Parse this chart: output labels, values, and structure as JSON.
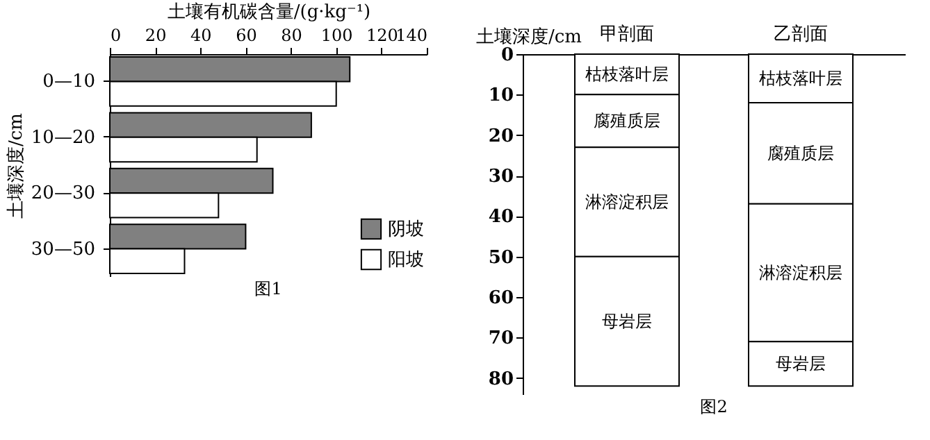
{
  "chart_data": [
    {
      "type": "bar",
      "orientation": "horizontal",
      "xlabel": "土壤有机碳含量/(g·kg⁻¹)",
      "ylabel": "土壤深度/cm",
      "categories": [
        "0—10",
        "10—20",
        "20—30",
        "30—50"
      ],
      "series": [
        {
          "name": "阴坡",
          "color": "#808080",
          "values": [
            106,
            89,
            72,
            60
          ]
        },
        {
          "name": "阳坡",
          "color": "#ffffff",
          "values": [
            100,
            65,
            48,
            33
          ]
        }
      ],
      "xlim": [
        0,
        140
      ],
      "xticks": [
        0,
        20,
        40,
        60,
        80,
        100,
        120,
        140
      ],
      "grid": false,
      "legend": "bottom right",
      "annotations": [
        "图1"
      ]
    },
    {
      "type": "bar",
      "stacked": true,
      "ylabel": "土壤深度/cm",
      "categories": [
        "甲剖面",
        "乙剖面"
      ],
      "series": [
        {
          "name": "枯枝落叶层",
          "color": "#ffffff",
          "values": [
            10,
            12
          ]
        },
        {
          "name": "腐殖质层",
          "color": "#ffffff",
          "values": [
            13,
            25
          ]
        },
        {
          "name": "淋溶淀积层",
          "color": "#ffffff",
          "values": [
            27,
            34
          ]
        },
        {
          "name": "母岩层",
          "color": "#ffffff",
          "values": [
            32,
            11
          ]
        }
      ],
      "ylim": [
        84,
        0
      ],
      "yticks": [
        0,
        10,
        20,
        30,
        40,
        50,
        60,
        70,
        80
      ],
      "grid": false,
      "annotations": [
        "图2"
      ]
    }
  ]
}
